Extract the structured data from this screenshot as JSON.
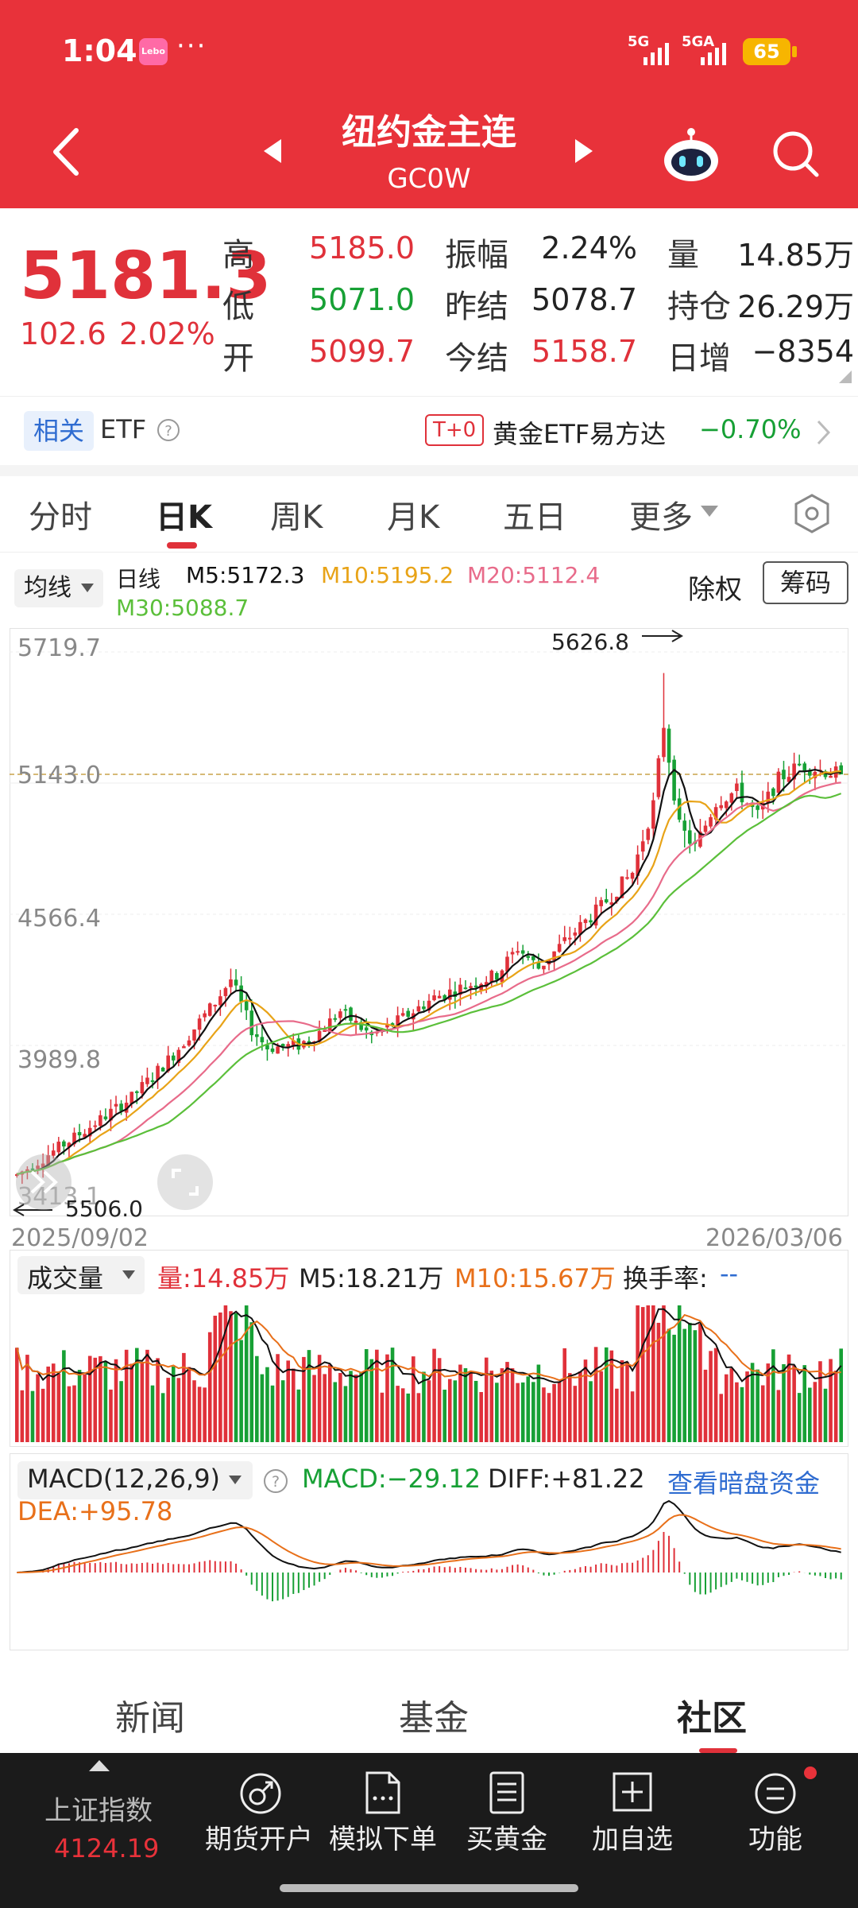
{
  "status": {
    "time": "1:04",
    "app_badge": "Lebo",
    "more": "···",
    "net1": "5G",
    "net2": "5GA",
    "battery": "65"
  },
  "header": {
    "title": "纽约金主连",
    "code": "GC0W"
  },
  "quote": {
    "price": "5181.3",
    "change": "102.6",
    "change_pct": "2.02%",
    "rows": [
      {
        "l1": "高",
        "v1": "5185.0",
        "l2": "振幅",
        "v2": "2.24%",
        "l3": "量",
        "v3": "14.85万"
      },
      {
        "l1": "低",
        "v1": "5071.0",
        "l2": "昨结",
        "v2": "5078.7",
        "l3": "持仓",
        "v3": "26.29万"
      },
      {
        "l1": "开",
        "v1": "5099.7",
        "l2": "今结",
        "v2": "5158.7",
        "l3": "日增",
        "v3": "−8354"
      }
    ]
  },
  "etf": {
    "tag": "相关",
    "label": "ETF",
    "t0": "T+0",
    "name": "黄金ETF易方达",
    "pct": "−0.70%"
  },
  "tabs": [
    "分时",
    "日K",
    "周K",
    "月K",
    "五日",
    "更多"
  ],
  "ma": {
    "btn": "均线",
    "type": "日线",
    "m5": "M5:5172.3",
    "m10": "M10:5195.2",
    "m20": "M20:5112.4",
    "m30": "M30:5088.7",
    "exright": "除权",
    "chips": "筹码"
  },
  "chart_data": {
    "type": "candlestick",
    "y_ticks": [
      "5719.7",
      "5143.0",
      "4566.4",
      "3989.8",
      "3413.1"
    ],
    "ylim": [
      3413.1,
      5719.7
    ],
    "high_label": "5626.8",
    "low_label": "5506.0",
    "x_start": "2025/09/02",
    "x_end": "2026/03/06",
    "last_price": 5181.3
  },
  "volume": {
    "btn": "成交量",
    "vol": "量:14.85万",
    "m5": "M5:18.21万",
    "m10": "M10:15.67万",
    "turnover_label": "换手率:",
    "turnover_val": "--"
  },
  "macd": {
    "btn": "MACD(12,26,9)",
    "macd": "MACD:−29.12",
    "diff": "DIFF:+81.22",
    "link": "查看暗盘资金",
    "dea": "DEA:+95.78"
  },
  "bottom_tabs": [
    "新闻",
    "基金",
    "社区"
  ],
  "toolbar": {
    "index_name": "上证指数",
    "index_val": "4124.19",
    "items": [
      "期货开户",
      "模拟下单",
      "买黄金",
      "加自选",
      "功能"
    ]
  },
  "colors": {
    "brand": "#e8323a",
    "up": "#e0313a",
    "down": "#17a035",
    "m5": "#111111",
    "m10": "#e8a317",
    "m20": "#e86b8a",
    "m30": "#5bbf3a"
  }
}
